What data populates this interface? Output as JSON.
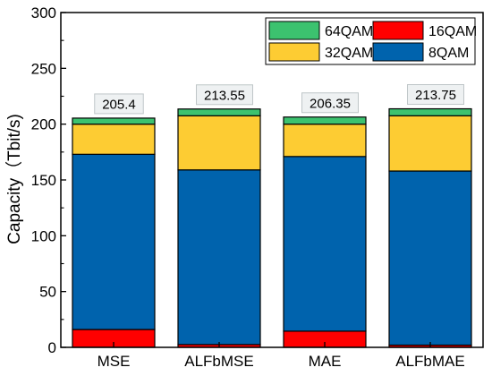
{
  "chart_data": {
    "type": "bar",
    "stacked": true,
    "title": "",
    "xlabel": "",
    "ylabel": "Capacity（Tbit/s)",
    "ylim": [
      0,
      300
    ],
    "yticks": [
      0,
      50,
      100,
      150,
      200,
      250,
      300
    ],
    "grid": false,
    "legend_position": "top-right",
    "categories": [
      "MSE",
      "ALFbMSE",
      "MAE",
      "ALFbMAE"
    ],
    "series": [
      {
        "name": "16QAM",
        "color": "#ff0000",
        "values": [
          16,
          2.5,
          14.5,
          2
        ]
      },
      {
        "name": "8QAM",
        "color": "#0063ad",
        "values": [
          157,
          156.5,
          156.5,
          156
        ]
      },
      {
        "name": "32QAM",
        "color": "#fdcc33",
        "values": [
          27,
          48.5,
          29,
          49.5
        ]
      },
      {
        "name": "64QAM",
        "color": "#3cc26f",
        "values": [
          5.4,
          6.05,
          6.35,
          6.25
        ]
      }
    ],
    "legend_order": [
      "64QAM",
      "16QAM",
      "32QAM",
      "8QAM"
    ],
    "totals": [
      "205.4",
      "213.55",
      "206.35",
      "213.75"
    ]
  }
}
